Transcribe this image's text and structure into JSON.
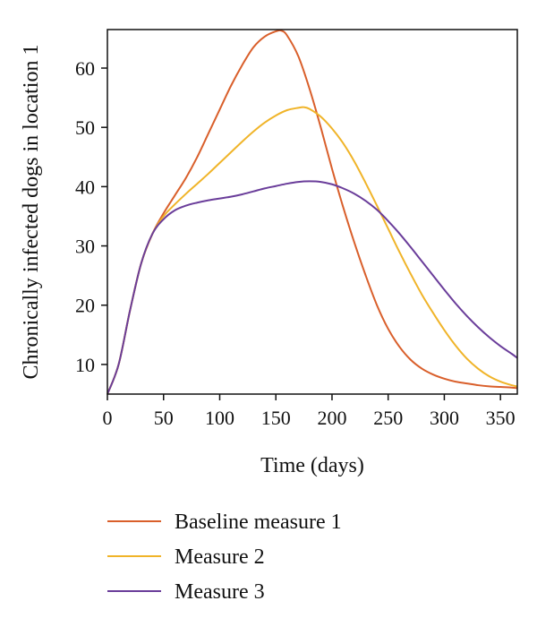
{
  "chart_data": {
    "type": "line",
    "xlabel": "Time (days)",
    "ylabel": "Chronically infected dogs in location 1",
    "xlim": [
      0,
      365
    ],
    "ylim": [
      5,
      66.5
    ],
    "xticks": [
      "0",
      "50",
      "100",
      "150",
      "200",
      "250",
      "300",
      "350"
    ],
    "yticks": [
      "10",
      "20",
      "30",
      "40",
      "50",
      "60"
    ],
    "grid": false,
    "legend_position": "bottom",
    "series": [
      {
        "name": "Baseline measure 1",
        "color": "#d95f2b",
        "x": [
          0,
          10,
          20,
          30,
          40,
          50,
          60,
          70,
          80,
          90,
          100,
          110,
          120,
          130,
          140,
          150,
          155,
          160,
          170,
          180,
          190,
          200,
          210,
          220,
          230,
          240,
          250,
          260,
          270,
          280,
          290,
          300,
          310,
          320,
          330,
          340,
          350,
          360,
          365
        ],
        "y": [
          5,
          10,
          19,
          27,
          32,
          35.5,
          38.5,
          41.5,
          45,
          49,
          53,
          57,
          60.5,
          63.5,
          65.3,
          66.2,
          66.3,
          65.5,
          62,
          56.5,
          50,
          43,
          36.5,
          30.5,
          25,
          20,
          16,
          13,
          10.8,
          9.3,
          8.3,
          7.6,
          7.1,
          6.8,
          6.5,
          6.3,
          6.2,
          6.1,
          6.0
        ]
      },
      {
        "name": "Measure 2",
        "color": "#f0b429",
        "x": [
          0,
          10,
          20,
          30,
          40,
          50,
          60,
          70,
          80,
          90,
          100,
          110,
          120,
          130,
          140,
          150,
          160,
          170,
          175,
          180,
          190,
          200,
          210,
          220,
          230,
          240,
          250,
          260,
          270,
          280,
          290,
          300,
          310,
          320,
          330,
          340,
          350,
          360,
          365
        ],
        "y": [
          5,
          10,
          19,
          27,
          32,
          35,
          37,
          38.8,
          40.5,
          42.2,
          44,
          45.8,
          47.6,
          49.3,
          50.8,
          52,
          52.9,
          53.3,
          53.4,
          53.1,
          51.8,
          49.8,
          47.3,
          44.2,
          40.6,
          36.8,
          32.9,
          29,
          25.3,
          21.8,
          18.7,
          15.8,
          13.2,
          11,
          9.3,
          8,
          7.1,
          6.5,
          6.3
        ]
      },
      {
        "name": "Measure 3",
        "color": "#6a3d9a",
        "x": [
          0,
          10,
          20,
          30,
          40,
          50,
          60,
          70,
          80,
          90,
          100,
          110,
          120,
          130,
          140,
          150,
          160,
          170,
          180,
          190,
          200,
          210,
          220,
          230,
          240,
          250,
          260,
          270,
          280,
          290,
          300,
          310,
          320,
          330,
          340,
          350,
          360,
          365
        ],
        "y": [
          5,
          10,
          19,
          27,
          32,
          34.5,
          36,
          36.8,
          37.3,
          37.7,
          38,
          38.3,
          38.7,
          39.2,
          39.7,
          40.1,
          40.5,
          40.8,
          40.9,
          40.8,
          40.4,
          39.7,
          38.8,
          37.6,
          36.1,
          34.2,
          32.1,
          29.8,
          27.4,
          25,
          22.6,
          20.3,
          18.2,
          16.3,
          14.6,
          13.1,
          11.8,
          11.1
        ]
      }
    ]
  }
}
